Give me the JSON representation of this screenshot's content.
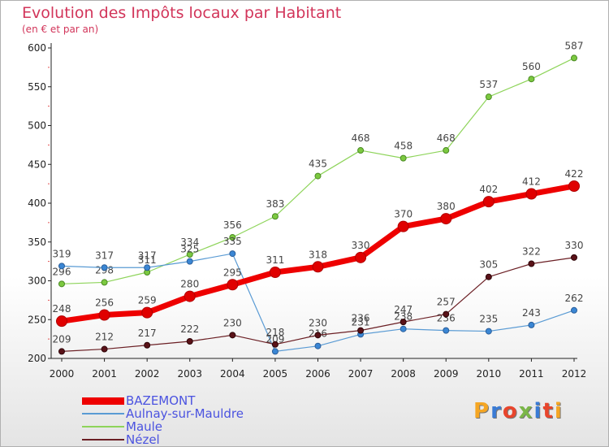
{
  "title": "Evolution des Impôts locaux par Habitant",
  "subtitle": "(en € et par an)",
  "brand": {
    "text": "Proxiti",
    "letter_colors": [
      "#f5a623",
      "#3a7bd5",
      "#e8452c",
      "#7ab648",
      "#3a7bd5",
      "#e8452c",
      "#f5a623"
    ]
  },
  "chart_data": {
    "type": "line",
    "title": "Evolution des Impôts locaux par Habitant",
    "subtitle": "(en € et par an)",
    "x": [
      "2000",
      "2001",
      "2002",
      "2003",
      "2004",
      "2005",
      "2006",
      "2007",
      "2008",
      "2009",
      "2010",
      "2011",
      "2012"
    ],
    "ylim": [
      200,
      600
    ],
    "yticks": [
      200,
      250,
      300,
      350,
      400,
      450,
      500,
      550,
      600
    ],
    "grid": false,
    "legend_position": "bottom-left",
    "series": [
      {
        "name": "BAZEMONT",
        "color": "#ee0000",
        "values": [
          248,
          256,
          259,
          280,
          295,
          311,
          318,
          330,
          370,
          380,
          402,
          412,
          422
        ]
      },
      {
        "name": "Aulnay-sur-Mauldre",
        "color": "#5a9bd4",
        "values": [
          319,
          317,
          317,
          325,
          335,
          209,
          216,
          231,
          238,
          236,
          235,
          243,
          262
        ]
      },
      {
        "name": "Maule",
        "color": "#8ed45a",
        "values": [
          296,
          298,
          311,
          334,
          356,
          383,
          435,
          468,
          458,
          468,
          537,
          560,
          587
        ]
      },
      {
        "name": "Nézel",
        "color": "#6b1f24",
        "values": [
          209,
          212,
          217,
          222,
          230,
          218,
          230,
          236,
          247,
          257,
          305,
          322,
          330
        ]
      }
    ]
  }
}
